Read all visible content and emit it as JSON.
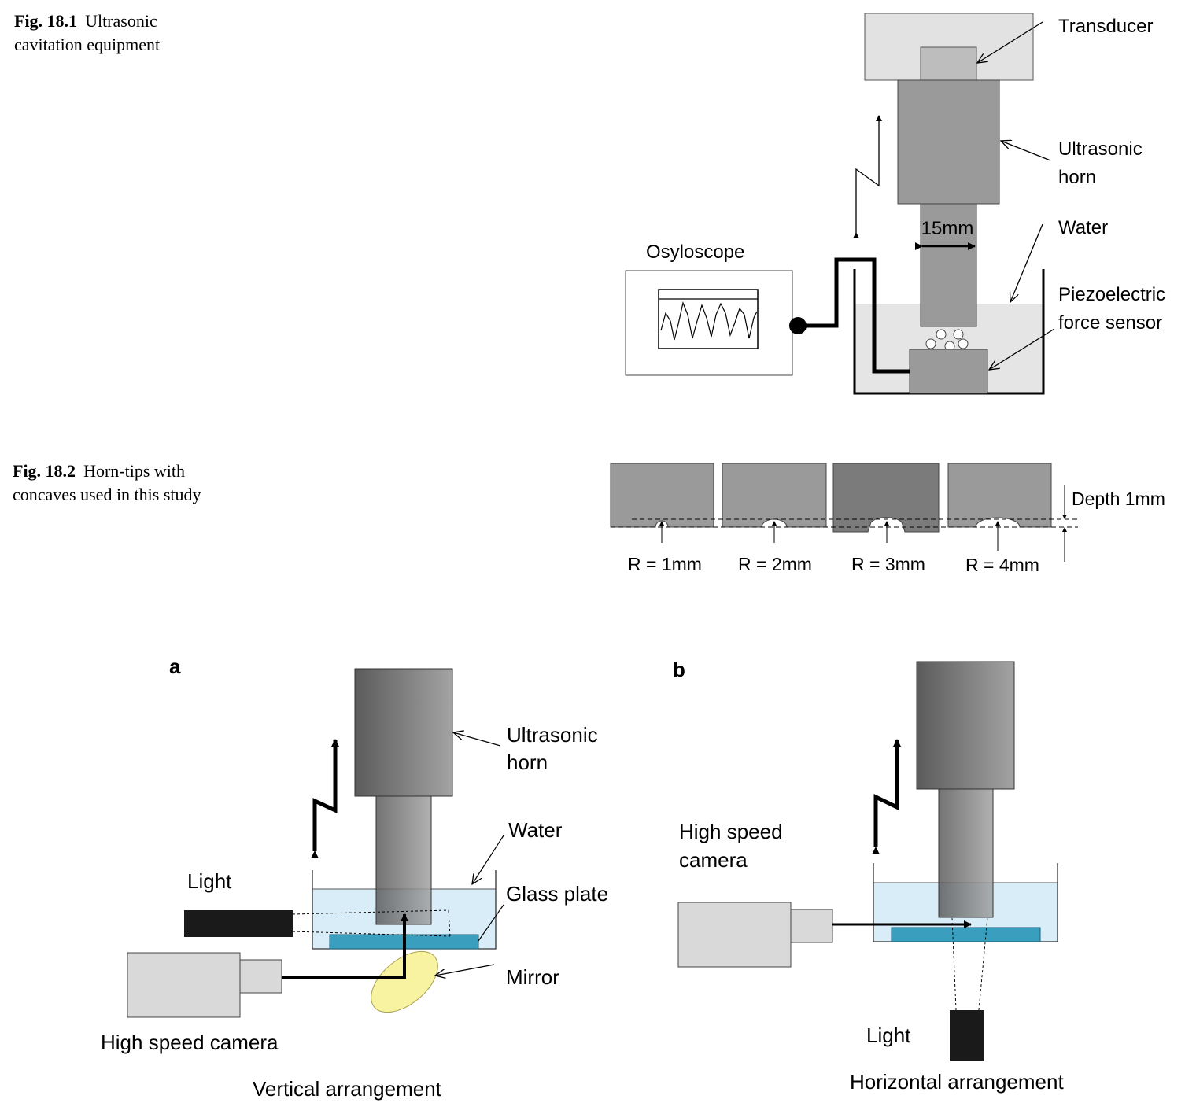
{
  "fig1": {
    "caption_label": "Fig. 18.1",
    "caption_line1": "Ultrasonic",
    "caption_line2": "cavitation equipment",
    "labels": {
      "transducer": "Transducer",
      "horn_line1": "Ultrasonic",
      "horn_line2": "horn",
      "water": "Water",
      "sensor_line1": "Piezoelectric",
      "sensor_line2": "force sensor",
      "oscilloscope": "Osyloscope",
      "diameter": "15mm"
    }
  },
  "fig2": {
    "caption_label": "Fig. 18.2",
    "caption_line1": "Horn-tips with",
    "caption_line2": "concaves used in this study",
    "depth": "Depth 1mm",
    "tips": [
      "R = 1mm",
      "R = 2mm",
      "R = 3mm",
      "R = 4mm"
    ]
  },
  "fig3": {
    "a": {
      "panel": "a",
      "horn_line1": "Ultrasonic",
      "horn_line2": "horn",
      "water": "Water",
      "glass": "Glass plate",
      "mirror": "Mirror",
      "light": "Light",
      "camera": "High speed camera",
      "title": "Vertical arrangement"
    },
    "b": {
      "panel": "b",
      "camera_line1": "High speed",
      "camera_line2": "camera",
      "light": "Light",
      "title": "Horizontal arrangement"
    }
  },
  "colors": {
    "horn_gray": "#999999",
    "transducer_frame": "#e2e2e2",
    "water": "#d9edf9",
    "glass": "#3a9fbf",
    "mirror": "#f7f3a0"
  }
}
